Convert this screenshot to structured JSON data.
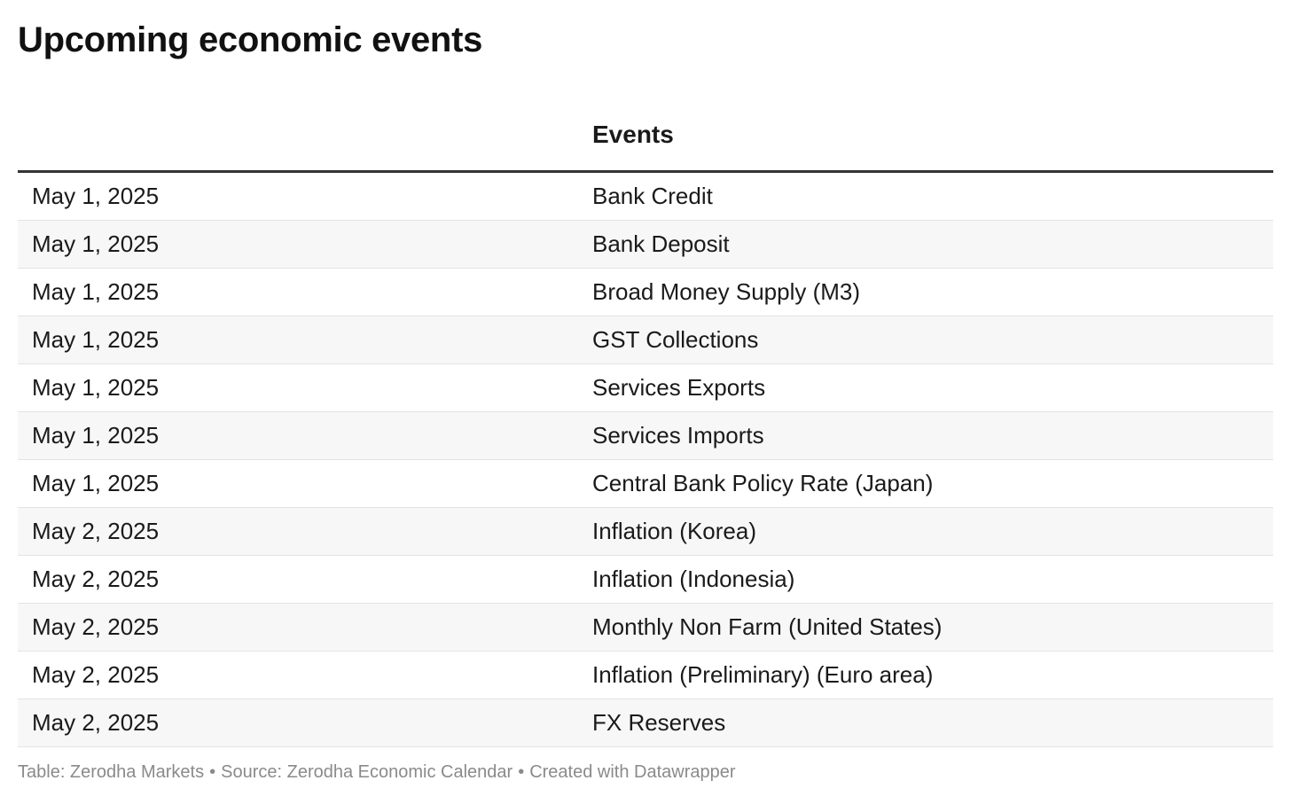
{
  "title": "Upcoming economic events",
  "chart_data": {
    "type": "table",
    "columns": [
      "",
      "Events"
    ],
    "rows": [
      {
        "date": "May 1, 2025",
        "event": "Bank Credit"
      },
      {
        "date": "May 1, 2025",
        "event": "Bank Deposit"
      },
      {
        "date": "May 1, 2025",
        "event": "Broad Money Supply (M3)"
      },
      {
        "date": "May 1, 2025",
        "event": "GST Collections"
      },
      {
        "date": "May 1, 2025",
        "event": "Services Exports"
      },
      {
        "date": "May 1, 2025",
        "event": "Services Imports"
      },
      {
        "date": "May 1, 2025",
        "event": "Central Bank Policy Rate (Japan)"
      },
      {
        "date": "May 2, 2025",
        "event": "Inflation (Korea)"
      },
      {
        "date": "May 2, 2025",
        "event": "Inflation (Indonesia)"
      },
      {
        "date": "May 2, 2025",
        "event": "Monthly Non Farm (United States)"
      },
      {
        "date": "May 2, 2025",
        "event": "Inflation (Preliminary) (Euro area)"
      },
      {
        "date": "May 2, 2025",
        "event": "FX Reserves"
      }
    ]
  },
  "footer": {
    "table_credit": "Table: Zerodha Markets",
    "source": "Source: Zerodha Economic Calendar",
    "created": "Created with Datawrapper",
    "separator": "•"
  },
  "colors": {
    "header_rule": "#333333",
    "row_alt": "#f7f7f7",
    "row_border": "#e3e3e3",
    "footer_text": "#8a8a8a"
  }
}
